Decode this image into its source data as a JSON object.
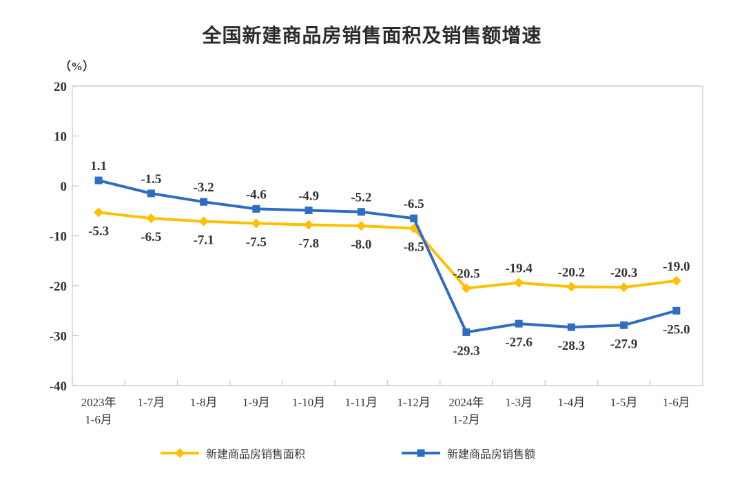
{
  "title": "全国新建商品房销售面积及销售额增速",
  "unit_label": "（%）",
  "colors": {
    "sales_area_series": "#FFC000",
    "sales_value_series": "#2F6DC1",
    "axis_line": "#C9C9C9",
    "text": "#333333",
    "title_text": "#2b2b2b",
    "background": "#ffffff"
  },
  "chart_data": {
    "type": "line",
    "title": "全国新建商品房销售面积及销售额增速",
    "ylabel": "（%）",
    "xlabel": "",
    "grid": false,
    "legend_position": "bottom",
    "ylim": [
      -40,
      20
    ],
    "yticks": [
      20,
      10,
      0,
      -10,
      -20,
      -30,
      -40
    ],
    "categories": [
      "2023年\n1-6月",
      "1-7月",
      "1-8月",
      "1-9月",
      "1-10月",
      "1-11月",
      "1-12月",
      "2024年\n1-2月",
      "1-3月",
      "1-4月",
      "1-5月",
      "1-6月"
    ],
    "series": [
      {
        "name": "新建商品房销售面积",
        "marker": "diamond",
        "color": "#FFC000",
        "values": [
          -5.3,
          -6.5,
          -7.1,
          -7.5,
          -7.8,
          -8.0,
          -8.5,
          -20.5,
          -19.4,
          -20.2,
          -20.3,
          -19.0
        ]
      },
      {
        "name": "新建商品房销售额",
        "marker": "square",
        "color": "#2F6DC1",
        "values": [
          1.1,
          -1.5,
          -3.2,
          -4.6,
          -4.9,
          -5.2,
          -6.5,
          -29.3,
          -27.6,
          -28.3,
          -27.9,
          -25.0
        ]
      }
    ]
  }
}
